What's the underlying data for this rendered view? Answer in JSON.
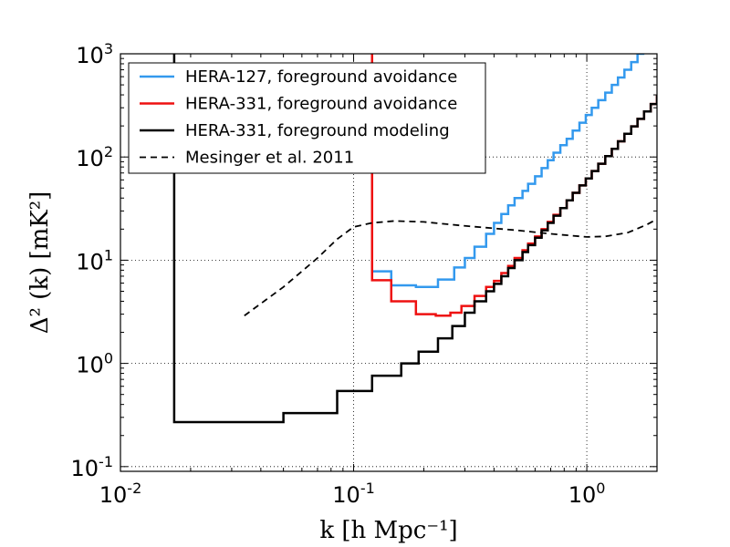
{
  "chart_data": {
    "type": "line",
    "xscale": "log",
    "yscale": "log",
    "xlim": [
      0.01,
      2.0
    ],
    "ylim": [
      0.09,
      1000
    ],
    "grid": true,
    "legend_position": "upper-left",
    "xlabel": "k [h Mpc⁻¹]",
    "ylabel": "Δ² (k) [mK²]",
    "xticks": [
      {
        "base": "10",
        "exp": "-2"
      },
      {
        "base": "10",
        "exp": "-1"
      },
      {
        "base": "10",
        "exp": "0"
      }
    ],
    "yticks": [
      {
        "base": "10",
        "exp": "-1"
      },
      {
        "base": "10",
        "exp": "0"
      },
      {
        "base": "10",
        "exp": "1"
      },
      {
        "base": "10",
        "exp": "2"
      },
      {
        "base": "10",
        "exp": "3"
      }
    ],
    "series": [
      {
        "name": "HERA-127, foreground avoidance",
        "color": "#3399ee",
        "style": "steps-post",
        "points": [
          [
            0.12,
            7.8
          ],
          [
            0.145,
            5.7
          ],
          [
            0.185,
            5.5
          ],
          [
            0.23,
            6.5
          ],
          [
            0.27,
            8.5
          ],
          [
            0.3,
            10.5
          ],
          [
            0.33,
            13.5
          ],
          [
            0.37,
            18
          ],
          [
            0.4,
            23
          ],
          [
            0.43,
            28
          ],
          [
            0.46,
            34
          ],
          [
            0.49,
            40
          ],
          [
            0.53,
            47
          ],
          [
            0.56,
            55
          ],
          [
            0.6,
            65
          ],
          [
            0.64,
            78
          ],
          [
            0.68,
            93
          ],
          [
            0.72,
            110
          ],
          [
            0.77,
            130
          ],
          [
            0.82,
            150
          ],
          [
            0.87,
            180
          ],
          [
            0.93,
            215
          ],
          [
            0.99,
            255
          ],
          [
            1.05,
            300
          ],
          [
            1.12,
            355
          ],
          [
            1.2,
            420
          ],
          [
            1.28,
            500
          ],
          [
            1.36,
            590
          ],
          [
            1.45,
            700
          ],
          [
            1.55,
            830
          ],
          [
            1.65,
            1000
          ]
        ]
      },
      {
        "name": "HERA-331, foreground avoidance",
        "color": "#ee1111",
        "style": "steps-post",
        "points": [
          [
            0.12,
            1000
          ],
          [
            0.12,
            6.4
          ],
          [
            0.145,
            4.0
          ],
          [
            0.185,
            3.0
          ],
          [
            0.225,
            2.9
          ],
          [
            0.26,
            3.1
          ],
          [
            0.29,
            3.6
          ],
          [
            0.33,
            4.5
          ],
          [
            0.37,
            5.5
          ],
          [
            0.4,
            6.3
          ],
          [
            0.43,
            7.5
          ],
          [
            0.46,
            8.8
          ],
          [
            0.49,
            10.5
          ],
          [
            0.53,
            12.5
          ],
          [
            0.56,
            14.5
          ],
          [
            0.6,
            17
          ],
          [
            0.64,
            20
          ],
          [
            0.68,
            23.5
          ],
          [
            0.72,
            27.5
          ],
          [
            0.77,
            32
          ],
          [
            0.82,
            38
          ],
          [
            0.87,
            45
          ],
          [
            0.93,
            53
          ],
          [
            0.99,
            62
          ],
          [
            1.05,
            73
          ],
          [
            1.12,
            86
          ],
          [
            1.2,
            102
          ],
          [
            1.28,
            120
          ],
          [
            1.36,
            142
          ],
          [
            1.45,
            168
          ],
          [
            1.55,
            198
          ],
          [
            1.65,
            234
          ],
          [
            1.76,
            276
          ],
          [
            1.88,
            326
          ],
          [
            2.0,
            385
          ]
        ]
      },
      {
        "name": "HERA-331, foreground modeling",
        "color": "#000000",
        "style": "steps-post",
        "points": [
          [
            0.017,
            1000
          ],
          [
            0.017,
            0.27
          ],
          [
            0.05,
            0.33
          ],
          [
            0.085,
            0.54
          ],
          [
            0.12,
            0.76
          ],
          [
            0.16,
            1.0
          ],
          [
            0.19,
            1.3
          ],
          [
            0.23,
            1.75
          ],
          [
            0.265,
            2.3
          ],
          [
            0.3,
            3.1
          ],
          [
            0.33,
            4.0
          ],
          [
            0.37,
            5.0
          ],
          [
            0.4,
            5.9
          ],
          [
            0.43,
            7.0
          ],
          [
            0.46,
            8.4
          ],
          [
            0.49,
            10
          ],
          [
            0.53,
            12
          ],
          [
            0.56,
            14
          ],
          [
            0.6,
            16.5
          ],
          [
            0.64,
            19.5
          ],
          [
            0.68,
            23
          ],
          [
            0.72,
            27
          ],
          [
            0.77,
            32
          ],
          [
            0.82,
            38
          ],
          [
            0.87,
            45
          ],
          [
            0.93,
            53
          ],
          [
            0.99,
            62
          ],
          [
            1.05,
            73
          ],
          [
            1.12,
            86
          ],
          [
            1.2,
            102
          ],
          [
            1.28,
            120
          ],
          [
            1.36,
            142
          ],
          [
            1.45,
            168
          ],
          [
            1.55,
            198
          ],
          [
            1.65,
            234
          ],
          [
            1.76,
            276
          ],
          [
            1.88,
            326
          ],
          [
            2.0,
            385
          ]
        ]
      },
      {
        "name": "Mesinger et al. 2011",
        "color": "#000000",
        "style": "dashed",
        "points": [
          [
            0.034,
            2.9
          ],
          [
            0.05,
            5.5
          ],
          [
            0.07,
            10.5
          ],
          [
            0.085,
            16
          ],
          [
            0.1,
            21
          ],
          [
            0.12,
            23
          ],
          [
            0.15,
            24
          ],
          [
            0.2,
            23.5
          ],
          [
            0.3,
            21.5
          ],
          [
            0.5,
            19.5
          ],
          [
            0.7,
            18
          ],
          [
            1.0,
            16.8
          ],
          [
            1.2,
            17
          ],
          [
            1.5,
            18.5
          ],
          [
            1.8,
            22
          ],
          [
            2.0,
            25
          ]
        ]
      }
    ]
  }
}
